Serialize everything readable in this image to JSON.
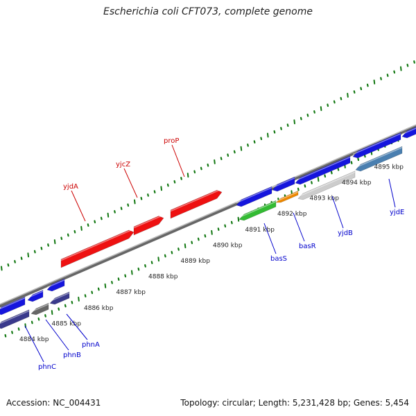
{
  "header": {
    "title": "Escherichia coli CFT073, complete genome"
  },
  "footer": {
    "accession": "Accession: NC_004431",
    "summary": "Topology: circular; Length: 5,231,428 bp; Genes: 5,454"
  },
  "colors": {
    "forward_gene": "#ee1111",
    "reverse_gene": "#1515dd",
    "reverse_gene_lane2": "#3a3a8c",
    "gray_gene": "#666666",
    "light_gene": "#cccccc",
    "steel_gene": "#4a7fb0",
    "green_gene": "#33bb33",
    "orange_gene": "#ee8800",
    "forward_label": "#cc0000",
    "reverse_label": "#0000cc",
    "tick_marks": "#117711",
    "backbone": "#888888"
  },
  "axis": {
    "ticks": [
      {
        "label": "4884 kbp",
        "kbp": 4884
      },
      {
        "label": "4885 kbp",
        "kbp": 4885
      },
      {
        "label": "4886 kbp",
        "kbp": 4886
      },
      {
        "label": "4887 kbp",
        "kbp": 4887
      },
      {
        "label": "4888 kbp",
        "kbp": 4888
      },
      {
        "label": "4889 kbp",
        "kbp": 4889
      },
      {
        "label": "4890 kbp",
        "kbp": 4890
      },
      {
        "label": "4891 kbp",
        "kbp": 4891
      },
      {
        "label": "4892 kbp",
        "kbp": 4892
      },
      {
        "label": "4893 kbp",
        "kbp": 4893
      },
      {
        "label": "4894 kbp",
        "kbp": 4894
      },
      {
        "label": "4895 kbp",
        "kbp": 4895
      }
    ]
  },
  "genes": {
    "forward": [
      {
        "name": "yjdA"
      },
      {
        "name": "yjcZ"
      },
      {
        "name": "proP"
      }
    ],
    "reverse": [
      {
        "name": "phnC"
      },
      {
        "name": "phnB"
      },
      {
        "name": "phnA"
      },
      {
        "name": "basS"
      },
      {
        "name": "basR"
      },
      {
        "name": "yjdB"
      },
      {
        "name": "yjdE"
      }
    ]
  }
}
